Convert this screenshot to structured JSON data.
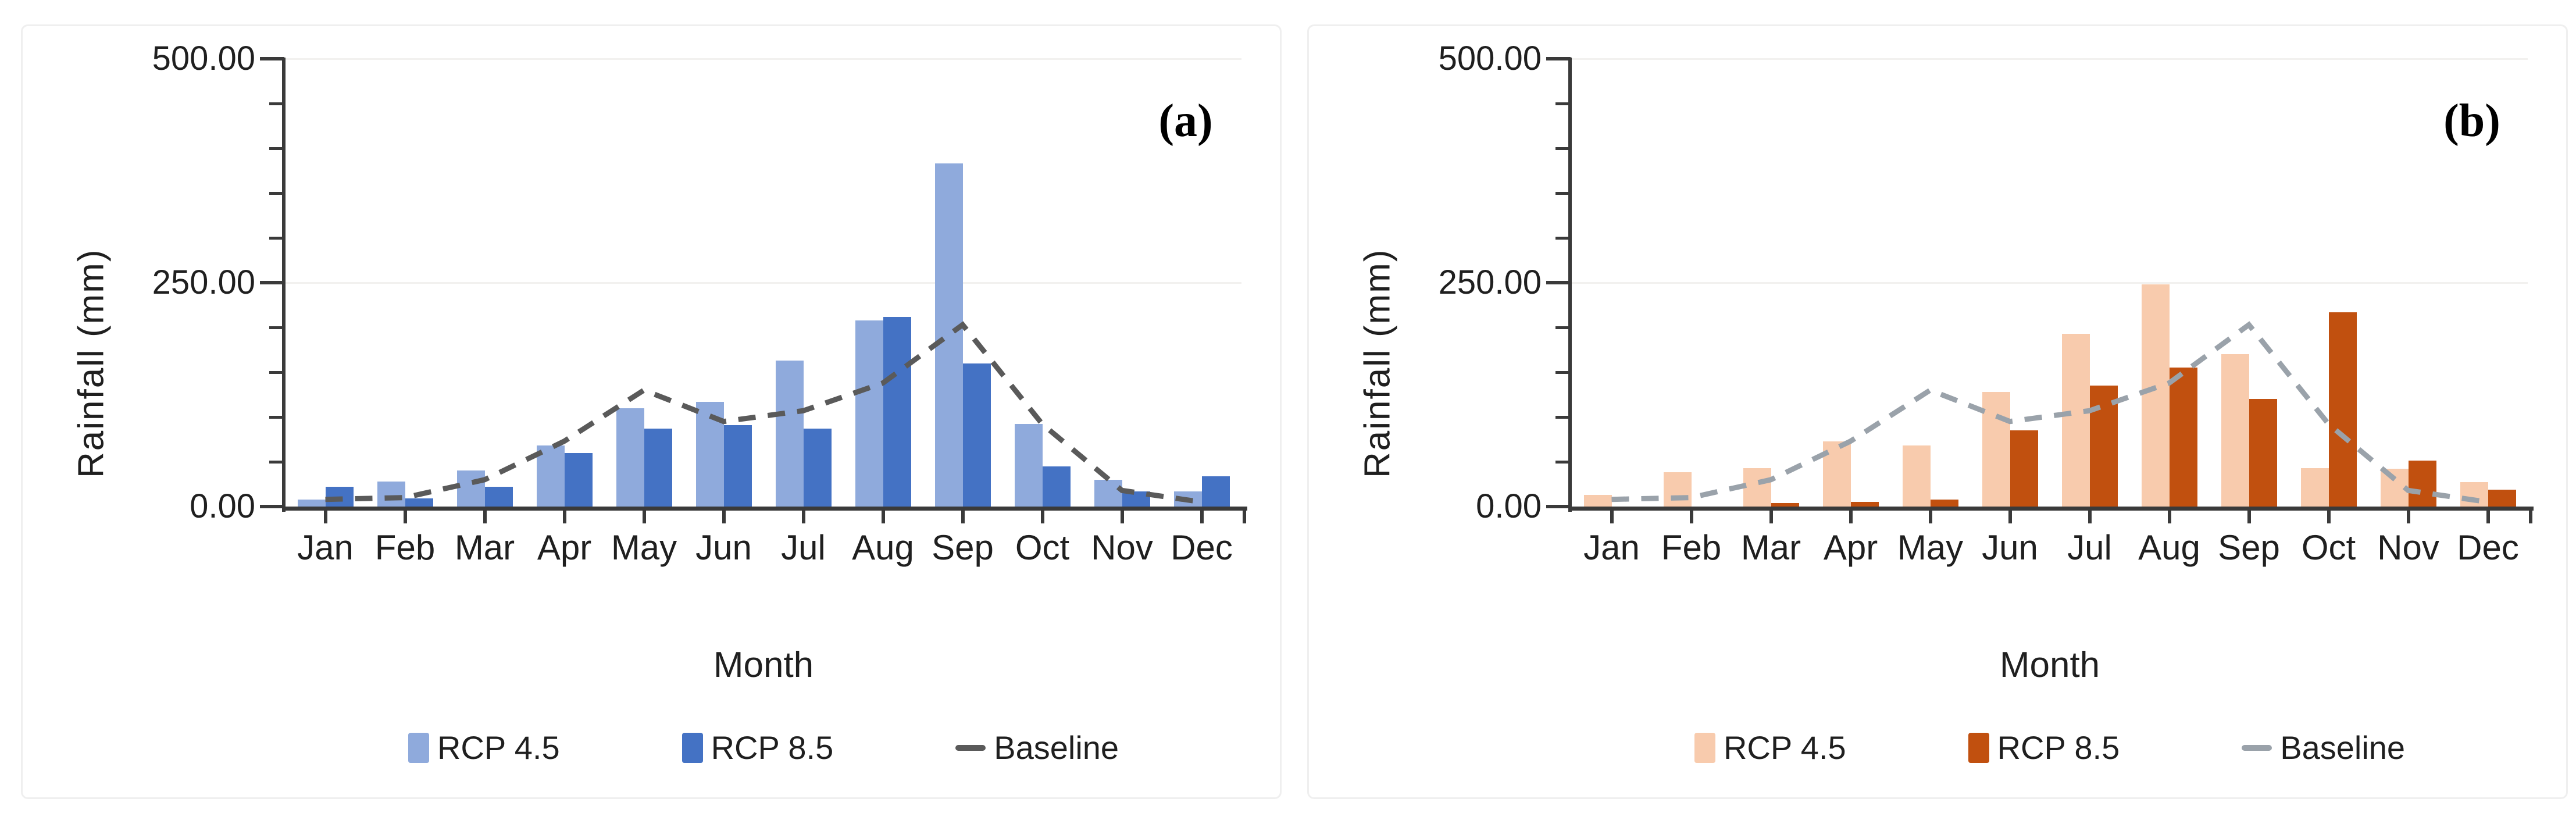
{
  "figure": {
    "background": "#ffffff",
    "panel_border_color": "#efefef",
    "axis_color": "#3a3a3a",
    "text_color": "#1f1f1f"
  },
  "chart_data": [
    {
      "type": "bar",
      "panel_label": "(a)",
      "title": "",
      "xlabel": "Month",
      "ylabel": "Rainfall (mm)",
      "categories": [
        "Jan",
        "Feb",
        "Mar",
        "Apr",
        "May",
        "Jun",
        "Jul",
        "Aug",
        "Sep",
        "Oct",
        "Nov",
        "Dec"
      ],
      "series": [
        {
          "name": "RCP 4.5",
          "kind": "bar",
          "color": "#8faadc",
          "values": [
            8,
            28,
            40,
            68,
            110,
            117,
            163,
            208,
            383,
            92,
            30,
            17
          ]
        },
        {
          "name": "RCP 8.5",
          "kind": "bar",
          "color": "#4472c4",
          "values": [
            22,
            9,
            22,
            60,
            87,
            91,
            87,
            212,
            160,
            45,
            17,
            34
          ]
        },
        {
          "name": "Baseline",
          "kind": "line",
          "dashed": true,
          "color": "#5a5a5a",
          "values": [
            8,
            10,
            30,
            73,
            130,
            95,
            107,
            138,
            203,
            92,
            18,
            5
          ]
        }
      ],
      "ylim": [
        0,
        500
      ],
      "y_major_ticks": [
        0,
        250,
        500
      ],
      "y_tick_labels": [
        "0.00",
        "250.00",
        "500.00"
      ],
      "y_minor_step": 50,
      "grid": "major-y",
      "legend_position": "bottom"
    },
    {
      "type": "bar",
      "panel_label": "(b)",
      "title": "",
      "xlabel": "Month",
      "ylabel": "Rainfall (mm)",
      "categories": [
        "Jan",
        "Feb",
        "Mar",
        "Apr",
        "May",
        "Jun",
        "Jul",
        "Aug",
        "Sep",
        "Oct",
        "Nov",
        "Dec"
      ],
      "series": [
        {
          "name": "RCP 4.5",
          "kind": "bar",
          "color": "#f8cbad",
          "values": [
            13,
            38,
            43,
            73,
            68,
            128,
            193,
            248,
            170,
            43,
            42,
            27
          ]
        },
        {
          "name": "RCP 8.5",
          "kind": "bar",
          "color": "#c1500f",
          "values": [
            0,
            0,
            4,
            5,
            8,
            85,
            135,
            155,
            120,
            217,
            51,
            19
          ]
        },
        {
          "name": "Baseline",
          "kind": "line",
          "dashed": true,
          "color": "#9aa2aa",
          "values": [
            8,
            10,
            30,
            73,
            130,
            95,
            107,
            138,
            203,
            92,
            18,
            5
          ]
        }
      ],
      "ylim": [
        0,
        500
      ],
      "y_major_ticks": [
        0,
        250,
        500
      ],
      "y_tick_labels": [
        "0.00",
        "250.00",
        "500.00"
      ],
      "y_minor_step": 50,
      "grid": "major-y",
      "legend_position": "bottom"
    }
  ]
}
